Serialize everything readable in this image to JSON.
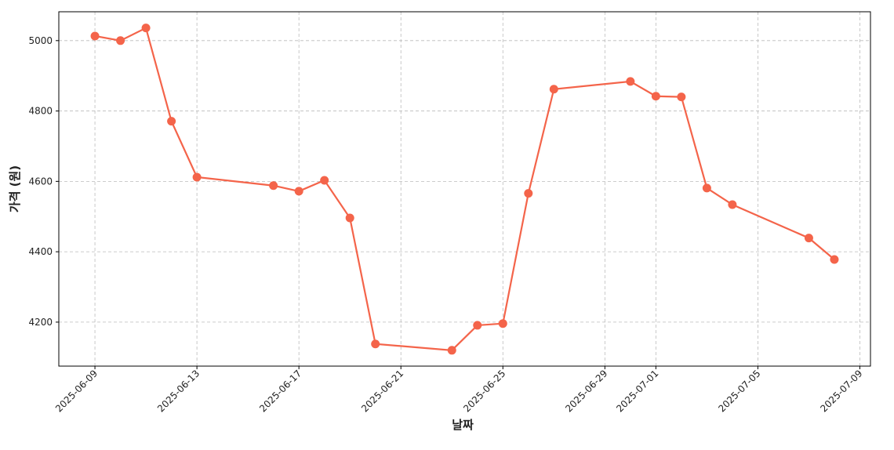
{
  "chart_data": {
    "type": "line",
    "x_label": "날짜",
    "y_label": "가격 (원)",
    "x": [
      "2025-06-09",
      "2025-06-10",
      "2025-06-11",
      "2025-06-12",
      "2025-06-13",
      "2025-06-16",
      "2025-06-17",
      "2025-06-18",
      "2025-06-19",
      "2025-06-20",
      "2025-06-23",
      "2025-06-24",
      "2025-06-25",
      "2025-06-26",
      "2025-06-27",
      "2025-06-30",
      "2025-07-01",
      "2025-07-02",
      "2025-07-03",
      "2025-07-04",
      "2025-07-07",
      "2025-07-08"
    ],
    "series": [
      {
        "color": "#f4644a",
        "values": [
          5013,
          5000,
          5036,
          4771,
          4612,
          4588,
          4572,
          4603,
          4496,
          4138,
          4120,
          4191,
          4196,
          4566,
          4862,
          4884,
          4842,
          4840,
          4581,
          4534,
          4439,
          4378
        ]
      }
    ],
    "xlim": [
      "2025-06-07T14:00",
      "2025-07-09T10:00"
    ],
    "xticks": [
      "2025-06-09",
      "2025-06-13",
      "2025-06-17",
      "2025-06-21",
      "2025-06-25",
      "2025-06-29",
      "2025-07-01",
      "2025-07-05",
      "2025-07-09"
    ],
    "ylim": [
      4075,
      5082
    ],
    "yticks": [
      4200,
      4400,
      4600,
      4800,
      5000
    ],
    "grid": true
  }
}
